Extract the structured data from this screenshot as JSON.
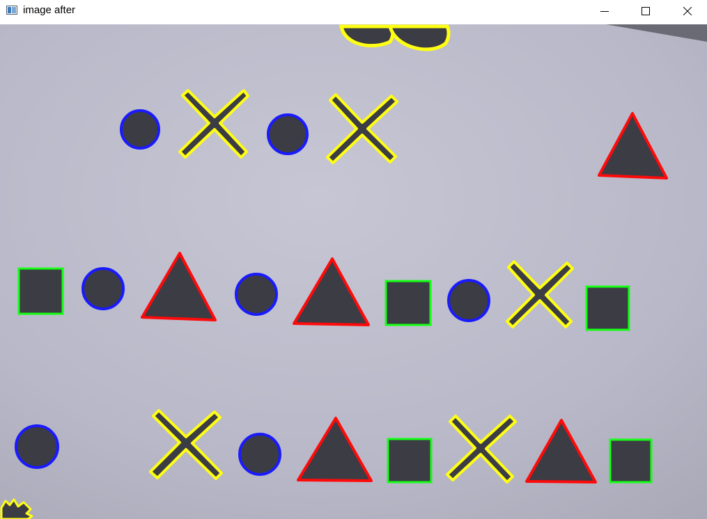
{
  "window": {
    "title": "image after",
    "app_icon": "opencv-window-icon",
    "controls": {
      "minimize": "minimize-icon",
      "maximize": "maximize-icon",
      "close": "close-icon"
    }
  },
  "image": {
    "background_color": "#bcbccc",
    "shape_fill_color": "#3c3c44",
    "contour_colors": {
      "circle": "#1a1aff",
      "cross": "#ffff14",
      "triangle": "#ff0a0a",
      "square": "#14ff14"
    },
    "shapes": [
      {
        "kind": "circle",
        "row": 1
      },
      {
        "kind": "cross",
        "row": 1
      },
      {
        "kind": "circle",
        "row": 1
      },
      {
        "kind": "cross",
        "row": 1
      },
      {
        "kind": "triangle",
        "row": 1
      },
      {
        "kind": "square",
        "row": 2
      },
      {
        "kind": "circle",
        "row": 2
      },
      {
        "kind": "triangle",
        "row": 2
      },
      {
        "kind": "circle",
        "row": 2
      },
      {
        "kind": "triangle",
        "row": 2
      },
      {
        "kind": "square",
        "row": 2
      },
      {
        "kind": "circle",
        "row": 2
      },
      {
        "kind": "cross",
        "row": 2
      },
      {
        "kind": "square",
        "row": 2
      },
      {
        "kind": "circle",
        "row": 3
      },
      {
        "kind": "cross",
        "row": 3
      },
      {
        "kind": "circle",
        "row": 3
      },
      {
        "kind": "triangle",
        "row": 3
      },
      {
        "kind": "square",
        "row": 3
      },
      {
        "kind": "cross",
        "row": 3
      },
      {
        "kind": "triangle",
        "row": 3
      },
      {
        "kind": "square",
        "row": 3
      }
    ]
  }
}
